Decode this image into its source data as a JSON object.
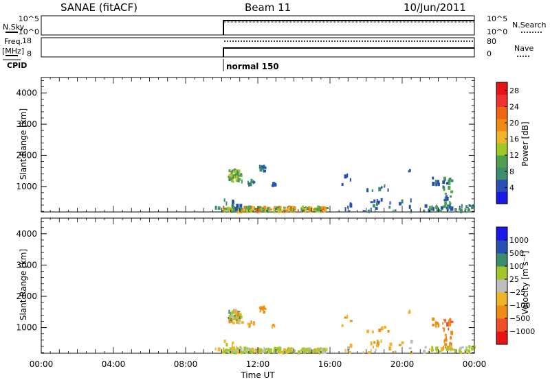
{
  "header": {
    "station": "SANAE (fitACF)",
    "beam": "Beam 11",
    "date": "10/Jun/2011"
  },
  "top_panels": {
    "nsky_label": "N.Sky",
    "nsky_ticks": [
      "10^5",
      "10^0"
    ],
    "nsearch_label": "N.Search",
    "nsearch_ticks": [
      "10^5",
      "10^0"
    ],
    "freq_label_1": "Freq.",
    "freq_label_2": "[MHz]",
    "freq_ticks": [
      "18",
      "8"
    ],
    "nave_label": "Nave",
    "nave_ticks": [
      "80",
      "0"
    ],
    "cpid_label": "CPID",
    "cpid_text": "normal 150"
  },
  "colors": {
    "power": [
      "#1a1ae6",
      "#2850b4",
      "#3c8c6e",
      "#50a050",
      "#a0c828",
      "#f0b428",
      "#f08c14",
      "#f06414",
      "#f03232",
      "#e61414"
    ],
    "velocity": [
      "#e61414",
      "#f05028",
      "#f08c14",
      "#f0b428",
      "#bebebe",
      "#a0c828",
      "#3c8c6e",
      "#2850b4",
      "#1a1ae6"
    ]
  },
  "chart_data": [
    {
      "type": "heatmap",
      "name": "power",
      "ylabel": "Slant Range [km]",
      "ylim": [
        180,
        4500
      ],
      "yticks": [
        1000,
        2000,
        3000,
        4000
      ],
      "xlim": [
        0,
        24
      ],
      "colorbar_label": "Power [dB]",
      "colorbar_ticks": [
        "4",
        "8",
        "12",
        "16",
        "20",
        "24",
        "28"
      ],
      "colorbar_range": [
        0,
        30
      ]
    },
    {
      "type": "heatmap",
      "name": "velocity",
      "ylabel": "Slant Range [km]",
      "ylim": [
        180,
        4500
      ],
      "yticks": [
        1000,
        2000,
        3000,
        4000
      ],
      "xlim": [
        0,
        24
      ],
      "xticks": [
        "00:00",
        "04:00",
        "08:00",
        "12:00",
        "16:00",
        "20:00",
        "00:00"
      ],
      "xlabel": "Time UT",
      "colorbar_label": "Velocity [m s⁻¹]",
      "colorbar_ticks": [
        "1000",
        "500",
        "100",
        "25",
        "−25",
        "−100",
        "−500",
        "−1000"
      ]
    }
  ]
}
